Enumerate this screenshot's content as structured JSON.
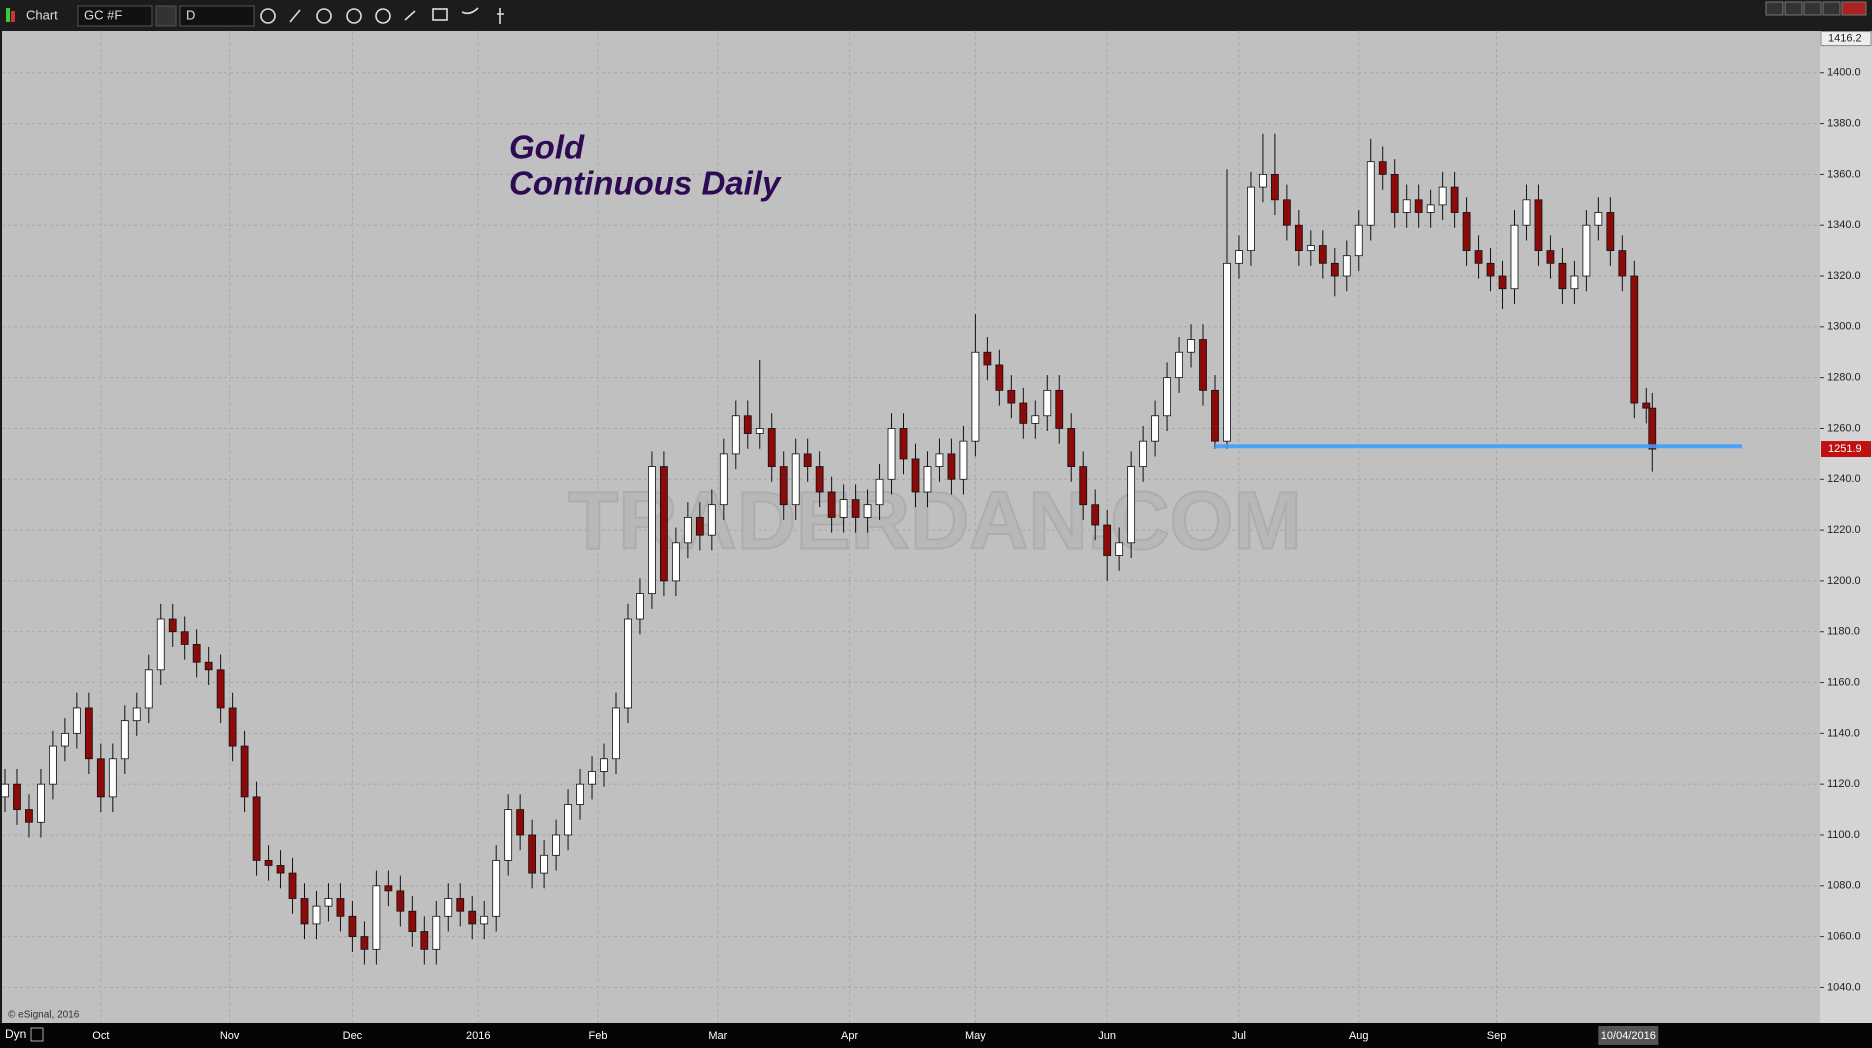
{
  "toolbar": {
    "app": "Chart",
    "symbol": "GC #F",
    "interval": "D"
  },
  "footer": {
    "mode": "Dyn",
    "copyright": "© eSignal, 2016"
  },
  "chart_data": {
    "type": "candlestick",
    "title": "Gold",
    "subtitle": "Continuous Daily",
    "watermark": "TRADERDAN.COM",
    "x": [
      0,
      2,
      4,
      6,
      8,
      10,
      12,
      14,
      16,
      18,
      20,
      22,
      24,
      26,
      28,
      30,
      32,
      34,
      36,
      38,
      40,
      42,
      44,
      46,
      48,
      50,
      52,
      54,
      56,
      58,
      60,
      62,
      64,
      66,
      68,
      70,
      72,
      74,
      76,
      78,
      80,
      82,
      84,
      86,
      88,
      90,
      92,
      94,
      96,
      98,
      100,
      102,
      104,
      106,
      108,
      110,
      112,
      114,
      116,
      118,
      120,
      122,
      124,
      126,
      128,
      130,
      132,
      134,
      136,
      138,
      140,
      142,
      144,
      146,
      148,
      150,
      152,
      154,
      156,
      158,
      160,
      162,
      164,
      166,
      168,
      170,
      172,
      174,
      176,
      178,
      180,
      182,
      184,
      186,
      188,
      190,
      192,
      194,
      196,
      198,
      200,
      202,
      204,
      206,
      208,
      210,
      212,
      214,
      216,
      218,
      220,
      222,
      224,
      226,
      228,
      230,
      232,
      234,
      236,
      238,
      240,
      242,
      244,
      246,
      248,
      250,
      252,
      254,
      256,
      258,
      260,
      262,
      264,
      266,
      268,
      270,
      272,
      274,
      275
    ],
    "open": [
      1115,
      1120,
      1110,
      1105,
      1120,
      1135,
      1140,
      1150,
      1130,
      1115,
      1130,
      1145,
      1150,
      1165,
      1185,
      1180,
      1175,
      1168,
      1165,
      1150,
      1135,
      1115,
      1090,
      1088,
      1085,
      1075,
      1065,
      1072,
      1075,
      1068,
      1060,
      1055,
      1080,
      1078,
      1070,
      1062,
      1055,
      1068,
      1075,
      1070,
      1065,
      1068,
      1090,
      1110,
      1100,
      1085,
      1092,
      1100,
      1112,
      1120,
      1125,
      1130,
      1150,
      1185,
      1195,
      1245,
      1200,
      1215,
      1225,
      1218,
      1230,
      1250,
      1265,
      1258,
      1260,
      1245,
      1230,
      1250,
      1245,
      1235,
      1225,
      1232,
      1225,
      1230,
      1240,
      1260,
      1248,
      1235,
      1245,
      1250,
      1240,
      1255,
      1290,
      1285,
      1275,
      1270,
      1262,
      1265,
      1275,
      1260,
      1245,
      1230,
      1222,
      1210,
      1215,
      1245,
      1255,
      1265,
      1280,
      1290,
      1295,
      1275,
      1255,
      1325,
      1330,
      1355,
      1360,
      1350,
      1340,
      1330,
      1332,
      1325,
      1320,
      1328,
      1340,
      1365,
      1360,
      1345,
      1350,
      1345,
      1348,
      1355,
      1345,
      1330,
      1325,
      1320,
      1315,
      1340,
      1350,
      1330,
      1325,
      1315,
      1320,
      1340,
      1345,
      1330,
      1320,
      1270,
      1268
    ],
    "high": [
      1126,
      1126,
      1116,
      1126,
      1141,
      1146,
      1156,
      1156,
      1136,
      1136,
      1151,
      1156,
      1171,
      1191,
      1191,
      1186,
      1181,
      1174,
      1171,
      1156,
      1141,
      1121,
      1096,
      1094,
      1091,
      1081,
      1078,
      1081,
      1081,
      1074,
      1066,
      1086,
      1086,
      1084,
      1076,
      1068,
      1074,
      1081,
      1081,
      1076,
      1074,
      1096,
      1116,
      1116,
      1106,
      1098,
      1106,
      1118,
      1126,
      1131,
      1136,
      1156,
      1191,
      1201,
      1251,
      1251,
      1221,
      1231,
      1231,
      1236,
      1256,
      1271,
      1271,
      1287,
      1266,
      1251,
      1256,
      1256,
      1251,
      1241,
      1238,
      1238,
      1236,
      1246,
      1266,
      1266,
      1254,
      1251,
      1256,
      1256,
      1261,
      1305,
      1296,
      1291,
      1281,
      1276,
      1271,
      1281,
      1281,
      1266,
      1251,
      1236,
      1228,
      1221,
      1251,
      1261,
      1271,
      1286,
      1296,
      1301,
      1301,
      1281,
      1362,
      1336,
      1361,
      1376,
      1376,
      1356,
      1346,
      1338,
      1338,
      1331,
      1334,
      1346,
      1374,
      1371,
      1366,
      1356,
      1356,
      1354,
      1361,
      1361,
      1351,
      1336,
      1331,
      1326,
      1346,
      1356,
      1356,
      1336,
      1331,
      1326,
      1346,
      1351,
      1351,
      1336,
      1326,
      1276,
      1274
    ],
    "low": [
      1109,
      1104,
      1099,
      1099,
      1114,
      1129,
      1134,
      1124,
      1109,
      1109,
      1124,
      1139,
      1144,
      1159,
      1174,
      1169,
      1162,
      1159,
      1144,
      1129,
      1109,
      1084,
      1082,
      1079,
      1069,
      1059,
      1059,
      1066,
      1062,
      1054,
      1049,
      1049,
      1072,
      1064,
      1056,
      1049,
      1049,
      1062,
      1064,
      1059,
      1059,
      1062,
      1084,
      1094,
      1079,
      1079,
      1086,
      1094,
      1106,
      1114,
      1119,
      1124,
      1144,
      1179,
      1189,
      1194,
      1194,
      1209,
      1212,
      1212,
      1224,
      1244,
      1252,
      1252,
      1239,
      1224,
      1224,
      1239,
      1229,
      1219,
      1219,
      1219,
      1219,
      1224,
      1234,
      1242,
      1229,
      1229,
      1239,
      1234,
      1234,
      1249,
      1279,
      1269,
      1264,
      1256,
      1256,
      1259,
      1254,
      1239,
      1224,
      1216,
      1200,
      1204,
      1209,
      1239,
      1249,
      1259,
      1274,
      1284,
      1269,
      1252,
      1252,
      1319,
      1324,
      1349,
      1344,
      1334,
      1324,
      1324,
      1319,
      1312,
      1314,
      1322,
      1334,
      1354,
      1339,
      1339,
      1339,
      1339,
      1342,
      1339,
      1324,
      1319,
      1314,
      1307,
      1309,
      1334,
      1324,
      1319,
      1309,
      1309,
      1314,
      1334,
      1324,
      1314,
      1264,
      1262,
      1243
    ],
    "close": [
      1120,
      1110,
      1105,
      1120,
      1135,
      1140,
      1150,
      1130,
      1115,
      1130,
      1145,
      1150,
      1165,
      1185,
      1180,
      1175,
      1168,
      1165,
      1150,
      1135,
      1115,
      1090,
      1088,
      1085,
      1075,
      1065,
      1072,
      1075,
      1068,
      1060,
      1055,
      1080,
      1078,
      1070,
      1062,
      1055,
      1068,
      1075,
      1070,
      1065,
      1068,
      1090,
      1110,
      1100,
      1085,
      1092,
      1100,
      1112,
      1120,
      1125,
      1130,
      1150,
      1185,
      1195,
      1245,
      1200,
      1215,
      1225,
      1218,
      1230,
      1250,
      1265,
      1258,
      1260,
      1245,
      1230,
      1250,
      1245,
      1235,
      1225,
      1232,
      1225,
      1230,
      1240,
      1260,
      1248,
      1235,
      1245,
      1250,
      1240,
      1255,
      1290,
      1285,
      1275,
      1270,
      1262,
      1265,
      1275,
      1260,
      1245,
      1230,
      1222,
      1210,
      1215,
      1245,
      1255,
      1265,
      1280,
      1290,
      1295,
      1275,
      1255,
      1325,
      1330,
      1355,
      1360,
      1350,
      1340,
      1330,
      1332,
      1325,
      1320,
      1328,
      1340,
      1365,
      1360,
      1345,
      1350,
      1345,
      1348,
      1355,
      1345,
      1330,
      1325,
      1320,
      1315,
      1340,
      1350,
      1330,
      1325,
      1315,
      1320,
      1340,
      1345,
      1330,
      1320,
      1270,
      1268,
      1251.9
    ],
    "up_color": "#ffffff",
    "down_color": "#8b0a0a",
    "xlim": [
      -0.5,
      303
    ],
    "xticks": [
      {
        "value": 16,
        "label": "Oct"
      },
      {
        "value": 37.5,
        "label": "Nov"
      },
      {
        "value": 58,
        "label": "Dec"
      },
      {
        "value": 79,
        "label": "2016"
      },
      {
        "value": 99,
        "label": "Feb"
      },
      {
        "value": 119,
        "label": "Mar"
      },
      {
        "value": 141,
        "label": "Apr"
      },
      {
        "value": 162,
        "label": "May"
      },
      {
        "value": 184,
        "label": "Jun"
      },
      {
        "value": 206,
        "label": "Jul"
      },
      {
        "value": 226,
        "label": "Aug"
      },
      {
        "value": 249,
        "label": "Sep"
      }
    ],
    "date_marker": {
      "value": 271,
      "label": "10/04/2016"
    },
    "ylim": [
      1026,
      1416.2
    ],
    "yticks": [
      {
        "value": 1040,
        "label": "1040.0"
      },
      {
        "value": 1060,
        "label": "1060.0"
      },
      {
        "value": 1080,
        "label": "1080.0"
      },
      {
        "value": 1100,
        "label": "1100.0"
      },
      {
        "value": 1120,
        "label": "1120.0"
      },
      {
        "value": 1140,
        "label": "1140.0"
      },
      {
        "value": 1160,
        "label": "1160.0"
      },
      {
        "value": 1180,
        "label": "1180.0"
      },
      {
        "value": 1200,
        "label": "1200.0"
      },
      {
        "value": 1220,
        "label": "1220.0"
      },
      {
        "value": 1240,
        "label": "1240.0"
      },
      {
        "value": 1260,
        "label": "1260.0"
      },
      {
        "value": 1280,
        "label": "1280.0"
      },
      {
        "value": 1300,
        "label": "1300.0"
      },
      {
        "value": 1320,
        "label": "1320.0"
      },
      {
        "value": 1340,
        "label": "1340.0"
      },
      {
        "value": 1360,
        "label": "1360.0"
      },
      {
        "value": 1380,
        "label": "1380.0"
      },
      {
        "value": 1400,
        "label": "1400.0"
      }
    ],
    "grid": true,
    "support_line": {
      "value": 1253,
      "x": [
        202,
        290
      ],
      "color": "#3fa0ff"
    }
  }
}
